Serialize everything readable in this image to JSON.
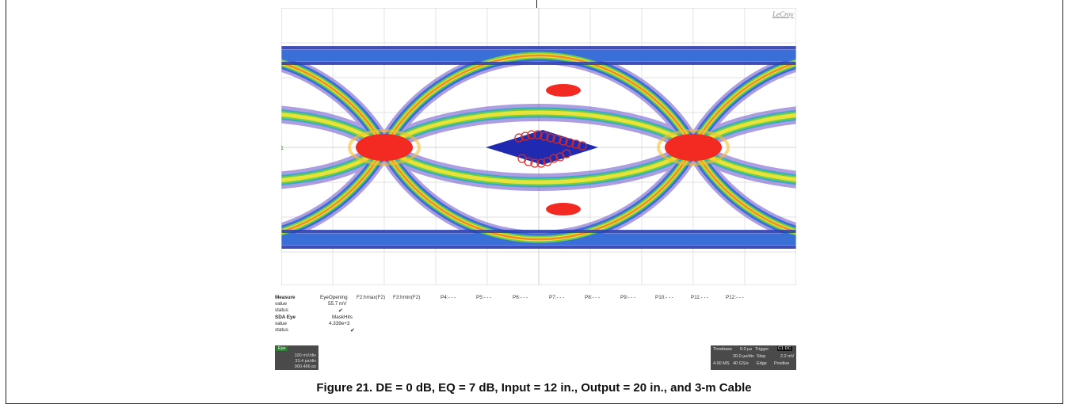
{
  "scope_brand": "LeCroy",
  "measure": {
    "title": "Measure",
    "row_labels": {
      "value": "value",
      "status": "status"
    },
    "p1": {
      "label": "EyeOpening",
      "value": "55.7 mV",
      "status": "✔"
    },
    "params": [
      "F2:hmax(F2)",
      "F3:hmin(F2)",
      "P4:- - -",
      "P5:- - -",
      "P6:- - -",
      "P7:- - -",
      "P8:- - -",
      "P9:- - -",
      "P10:- - -",
      "P11:- - -",
      "P12:- - -"
    ],
    "sda": {
      "title": "SDA Eye",
      "label": "MaskHits",
      "value": "4.339e+3",
      "status": "✔"
    }
  },
  "channel": {
    "tag": "Eye",
    "vdiv": "100 mV/div",
    "tdiv": "33.4 ps/div",
    "ui": "900.486 ps"
  },
  "timebase": {
    "label": "Timebase",
    "delay": "0.0 µs",
    "tdiv": "20.0 µs/div",
    "rate_ms": "4.00 MS",
    "rate_gs": "40 GS/s",
    "trigger_label": "Trigger",
    "trigger_badge": "C1 DC",
    "stop": "Stop",
    "level": "2.2 mV",
    "edge": "Edge",
    "slope": "Positive"
  },
  "caption": "Figure 21. DE = 0 dB, EQ = 7 dB, Input = 12 in., Output = 20 in., and 3-m Cable"
}
